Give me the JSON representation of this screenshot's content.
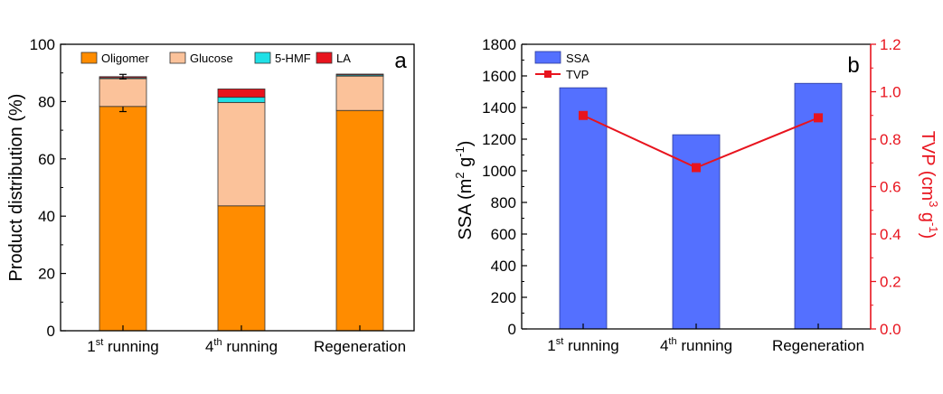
{
  "chart_data": [
    {
      "type": "bar",
      "stacked": true,
      "panel_label": "a",
      "title": "",
      "categories": [
        {
          "base": "1",
          "sup": "st",
          "rest": " running"
        },
        {
          "base": "4",
          "sup": "th",
          "rest": " running"
        },
        {
          "base": "Regeneration",
          "sup": "",
          "rest": ""
        }
      ],
      "ylabel": "Product distribution (%)",
      "xlabel": "",
      "ylim": [
        0,
        100
      ],
      "yticks": [
        0,
        20,
        40,
        60,
        80,
        100
      ],
      "grid": false,
      "legend_position": "top-inside",
      "series": [
        {
          "name": "Oligomer",
          "color": "#ff8c00",
          "values": [
            78.3,
            43.6,
            76.9
          ],
          "error": [
            1.8,
            0,
            0
          ]
        },
        {
          "name": "Glucose",
          "color": "#fbc29a",
          "values": [
            9.7,
            36.1,
            12.0
          ]
        },
        {
          "name": "5-HMF",
          "color": "#1fe0e6",
          "values": [
            0.3,
            1.8,
            0.4
          ]
        },
        {
          "name": "LA",
          "color": "#e8141e",
          "values": [
            0.4,
            2.9,
            0.3
          ],
          "error": [
            0.8,
            0,
            0
          ]
        }
      ]
    },
    {
      "type": "bar+line",
      "panel_label": "b",
      "title": "",
      "categories": [
        {
          "base": "1",
          "sup": "st",
          "rest": " running"
        },
        {
          "base": "4",
          "sup": "th",
          "rest": " running"
        },
        {
          "base": "Regeneration",
          "sup": "",
          "rest": ""
        }
      ],
      "ylabel_left": {
        "parts": [
          "SSA (m",
          "2",
          " g",
          "-1",
          ")"
        ]
      },
      "ylabel_right": {
        "parts": [
          "TVP (cm",
          "3",
          " g",
          "-1",
          ")"
        ]
      },
      "ylim_left": [
        0,
        1800
      ],
      "yticks_left": [
        0,
        200,
        400,
        600,
        800,
        1000,
        1200,
        1400,
        1600,
        1800
      ],
      "ylim_right": [
        0,
        1.2
      ],
      "yticks_right": [
        "0.0",
        "0.2",
        "0.4",
        "0.6",
        "0.8",
        "1.0",
        "1.2"
      ],
      "grid": false,
      "legend_position": "top-left",
      "right_axis_color": "#e8141e",
      "series": [
        {
          "name": "SSA",
          "kind": "bar",
          "axis": "left",
          "color": "#5470ff",
          "values": [
            1525,
            1228,
            1553
          ]
        },
        {
          "name": "TVP",
          "kind": "line",
          "axis": "right",
          "color": "#e8141e",
          "values": [
            0.9,
            0.68,
            0.89
          ]
        }
      ]
    }
  ]
}
